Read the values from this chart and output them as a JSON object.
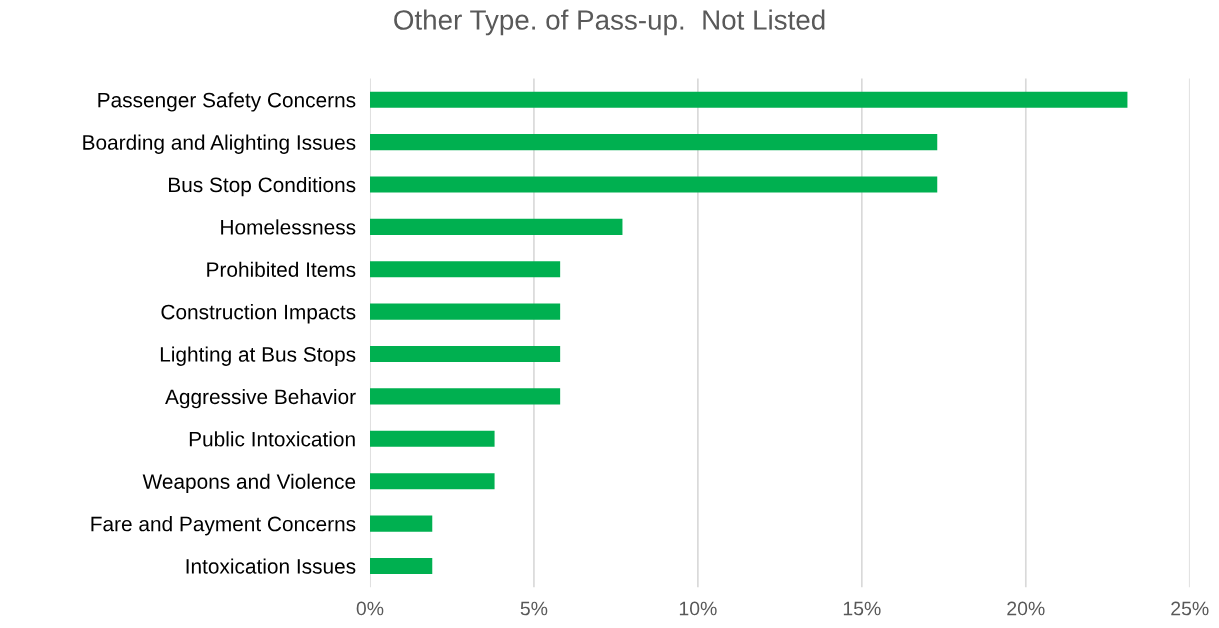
{
  "chart_data": {
    "type": "bar",
    "orientation": "horizontal",
    "title": "Other Type. of Pass-up.  Not Listed",
    "categories": [
      "Passenger Safety Concerns",
      "Boarding and Alighting Issues",
      "Bus Stop Conditions",
      "Homelessness",
      "Prohibited Items",
      "Construction Impacts",
      "Lighting at Bus Stops",
      "Aggressive Behavior",
      "Public Intoxication",
      "Weapons and Violence",
      "Fare and Payment Concerns",
      "Intoxication Issues"
    ],
    "values": [
      23.1,
      17.3,
      17.3,
      7.7,
      5.8,
      5.8,
      5.8,
      5.8,
      3.8,
      3.8,
      1.9,
      1.9
    ],
    "color": "#00b050",
    "xlim": [
      0,
      25
    ],
    "xticks": [
      {
        "value": 0,
        "label": "0%"
      },
      {
        "value": 5,
        "label": "5%"
      },
      {
        "value": 10,
        "label": "10%"
      },
      {
        "value": 15,
        "label": "15%"
      },
      {
        "value": 20,
        "label": "20%"
      },
      {
        "value": 25,
        "label": "25%"
      }
    ],
    "grid": "x"
  }
}
